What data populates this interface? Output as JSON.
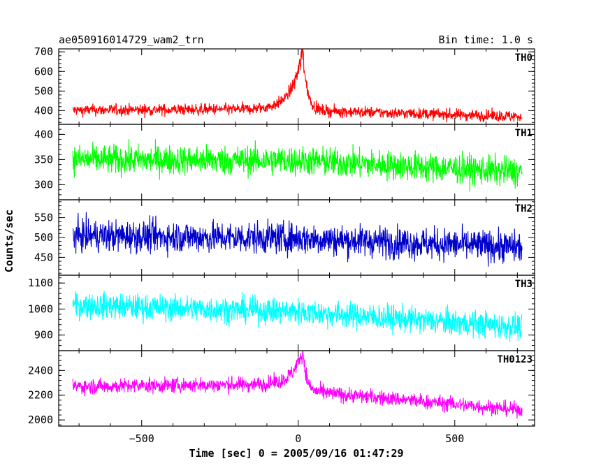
{
  "header": {
    "title": "ae050916014729_wam2_trn",
    "bin_time": "Bin time: 1.0 s"
  },
  "chart_data": {
    "type": "line",
    "xlabel": "Time [sec] 0 = 2005/09/16 01:47:29",
    "ylabel": "Counts/sec",
    "xlim": [
      -765,
      755
    ],
    "xticks": [
      -500,
      0,
      500
    ],
    "x_range": [
      -720,
      715
    ],
    "panels": [
      {
        "name": "TH0",
        "color": "#ff0000",
        "ylim": [
          330,
          715
        ],
        "yticks": [
          400,
          500,
          600,
          700
        ],
        "base": [
          [
            -720,
            402
          ],
          [
            0,
            408
          ],
          [
            30,
            400
          ],
          [
            715,
            370
          ]
        ],
        "noise": 28,
        "peak": {
          "x": 15,
          "y": 705,
          "rise": 35,
          "decay": 14
        }
      },
      {
        "name": "TH1",
        "color": "#00ff00",
        "ylim": [
          270,
          420
        ],
        "yticks": [
          300,
          350,
          400
        ],
        "base": [
          [
            -720,
            350
          ],
          [
            0,
            348
          ],
          [
            715,
            325
          ]
        ],
        "noise": 28,
        "peak": null
      },
      {
        "name": "TH2",
        "color": "#0000cc",
        "ylim": [
          405,
          595
        ],
        "yticks": [
          450,
          500,
          550
        ],
        "base": [
          [
            -720,
            505
          ],
          [
            0,
            498
          ],
          [
            715,
            475
          ]
        ],
        "noise": 38,
        "peak": null
      },
      {
        "name": "TH3",
        "color": "#00ffff",
        "ylim": [
          840,
          1130
        ],
        "yticks": [
          900,
          1000,
          1100
        ],
        "base": [
          [
            -720,
            1015
          ],
          [
            0,
            990
          ],
          [
            715,
            930
          ]
        ],
        "noise": 48,
        "peak": null
      },
      {
        "name": "TH0123",
        "color": "#ff00ff",
        "ylim": [
          1950,
          2560
        ],
        "yticks": [
          2000,
          2200,
          2400
        ],
        "base": [
          [
            -720,
            2270
          ],
          [
            0,
            2290
          ],
          [
            30,
            2230
          ],
          [
            715,
            2080
          ]
        ],
        "noise": 58,
        "peak": {
          "x": 15,
          "y": 2560,
          "rise": 30,
          "decay": 12
        }
      }
    ]
  }
}
